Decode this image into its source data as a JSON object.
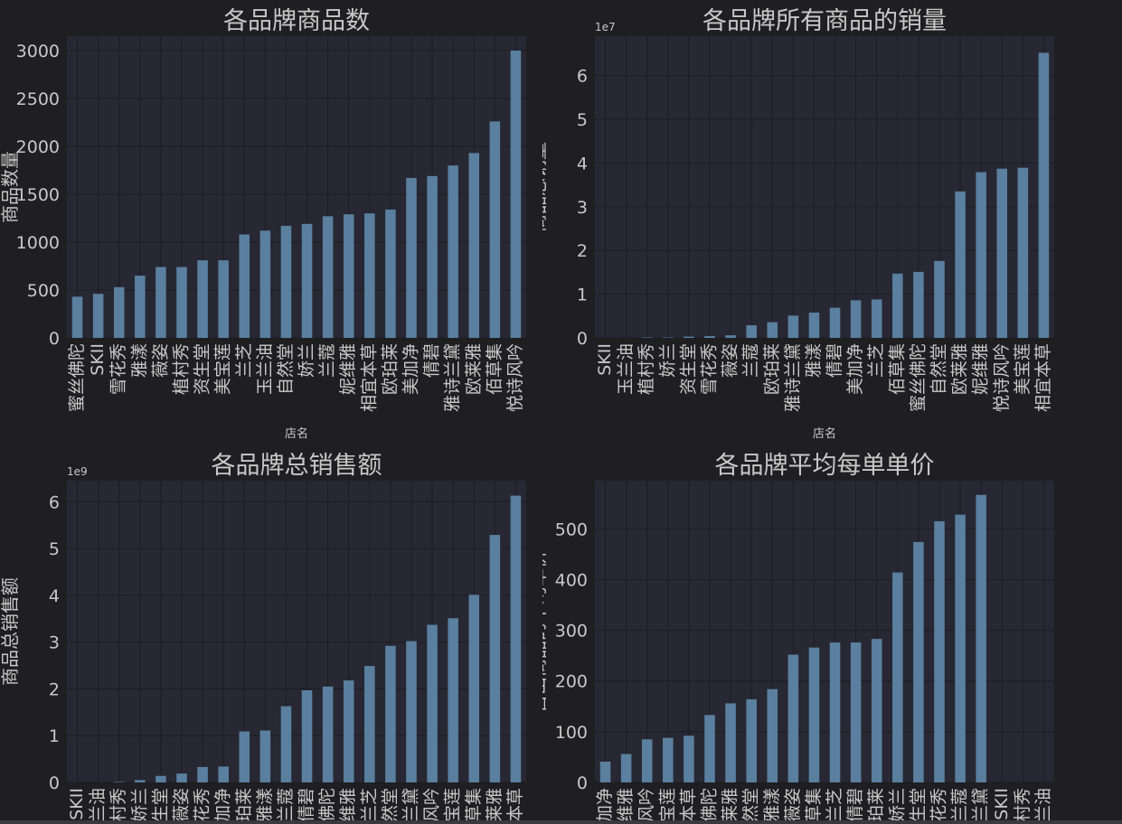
{
  "colors": {
    "background": "#1f1f21",
    "plot_bg": "#272833",
    "bar": "#5a7f9f",
    "grid": "#1c1c22",
    "text": "#c8c8c8"
  },
  "chart_data": [
    {
      "type": "bar",
      "title": "各品牌商品数",
      "xlabel": "店名",
      "ylabel": "商品数量",
      "scale_label": "",
      "ylim": [
        0,
        3150
      ],
      "yticks": [
        0,
        500,
        1000,
        1500,
        2000,
        2500,
        3000
      ],
      "categories": [
        "蜜丝佛陀",
        "SKII",
        "雪花秀",
        "雅漾",
        "薇姿",
        "植村秀",
        "资生堂",
        "美宝莲",
        "兰芝",
        "玉兰油",
        "自然堂",
        "娇兰",
        "兰蔻",
        "妮维雅",
        "相宜本草",
        "欧珀莱",
        "美加净",
        "倩碧",
        "雅诗兰黛",
        "欧莱雅",
        "佰草集",
        "悦诗风吟"
      ],
      "values": [
        430,
        460,
        530,
        650,
        740,
        740,
        810,
        810,
        1080,
        1120,
        1170,
        1190,
        1270,
        1290,
        1300,
        1340,
        1670,
        1690,
        1800,
        1930,
        2260,
        3000
      ]
    },
    {
      "type": "bar",
      "title": "各品牌所有商品的销量",
      "xlabel": "店名",
      "ylabel": "商品总销量",
      "scale_label": "1e7",
      "ylim": [
        0,
        6.9
      ],
      "yticks": [
        0,
        1,
        2,
        3,
        4,
        5,
        6
      ],
      "categories": [
        "SKII",
        "玉兰油",
        "植村秀",
        "娇兰",
        "资生堂",
        "雪花秀",
        "薇姿",
        "兰蔻",
        "欧珀莱",
        "雅诗兰黛",
        "雅漾",
        "倩碧",
        "美加净",
        "兰芝",
        "佰草集",
        "蜜丝佛陀",
        "自然堂",
        "欧莱雅",
        "妮维雅",
        "悦诗风吟",
        "美宝莲",
        "相宜本草"
      ],
      "values": [
        0.0,
        0.0,
        0.01,
        0.01,
        0.03,
        0.04,
        0.06,
        0.29,
        0.36,
        0.51,
        0.58,
        0.69,
        0.86,
        0.88,
        1.47,
        1.51,
        1.76,
        3.35,
        3.79,
        3.87,
        3.89,
        6.52
      ]
    },
    {
      "type": "bar",
      "title": "各品牌总销售额",
      "xlabel": "",
      "ylabel": "商品总销售额",
      "scale_label": "1e9",
      "ylim": [
        0,
        6.45
      ],
      "yticks": [
        0,
        1,
        2,
        3,
        4,
        5,
        6
      ],
      "categories": [
        "SKII",
        "玉兰油",
        "植村秀",
        "娇兰",
        "资生堂",
        "薇姿",
        "雪花秀",
        "美加净",
        "欧珀莱",
        "雅漾",
        "兰蔻",
        "倩碧",
        "蜜丝佛陀",
        "妮维雅",
        "兰芝",
        "自然堂",
        "雅诗兰黛",
        "悦诗风吟",
        "美宝莲",
        "佰草集",
        "欧莱雅",
        "相宜本草"
      ],
      "values": [
        0.0,
        0.0,
        0.01,
        0.05,
        0.14,
        0.19,
        0.33,
        0.34,
        1.09,
        1.11,
        1.63,
        1.97,
        2.05,
        2.18,
        2.49,
        2.92,
        3.02,
        3.37,
        3.51,
        4.01,
        5.29,
        6.13
      ]
    },
    {
      "type": "bar",
      "title": "各品牌平均每单单价",
      "xlabel": "",
      "ylabel": "售出商品的平均单价",
      "scale_label": "",
      "ylim": [
        0,
        595
      ],
      "yticks": [
        0,
        100,
        200,
        300,
        400,
        500
      ],
      "categories": [
        "美加净",
        "妮维雅",
        "悦诗风吟",
        "美宝莲",
        "相宜本草",
        "蜜丝佛陀",
        "欧莱雅",
        "自然堂",
        "雅漾",
        "薇姿",
        "佰草集",
        "兰芝",
        "倩碧",
        "欧珀莱",
        "娇兰",
        "资生堂",
        "雪花秀",
        "兰蔻",
        "雅诗兰黛",
        "SKII",
        "植村秀",
        "玉兰油"
      ],
      "values": [
        41,
        56,
        85,
        88,
        92,
        133,
        156,
        164,
        184,
        252,
        266,
        276,
        276,
        283,
        414,
        474,
        515,
        528,
        567,
        0,
        0,
        0
      ]
    }
  ]
}
